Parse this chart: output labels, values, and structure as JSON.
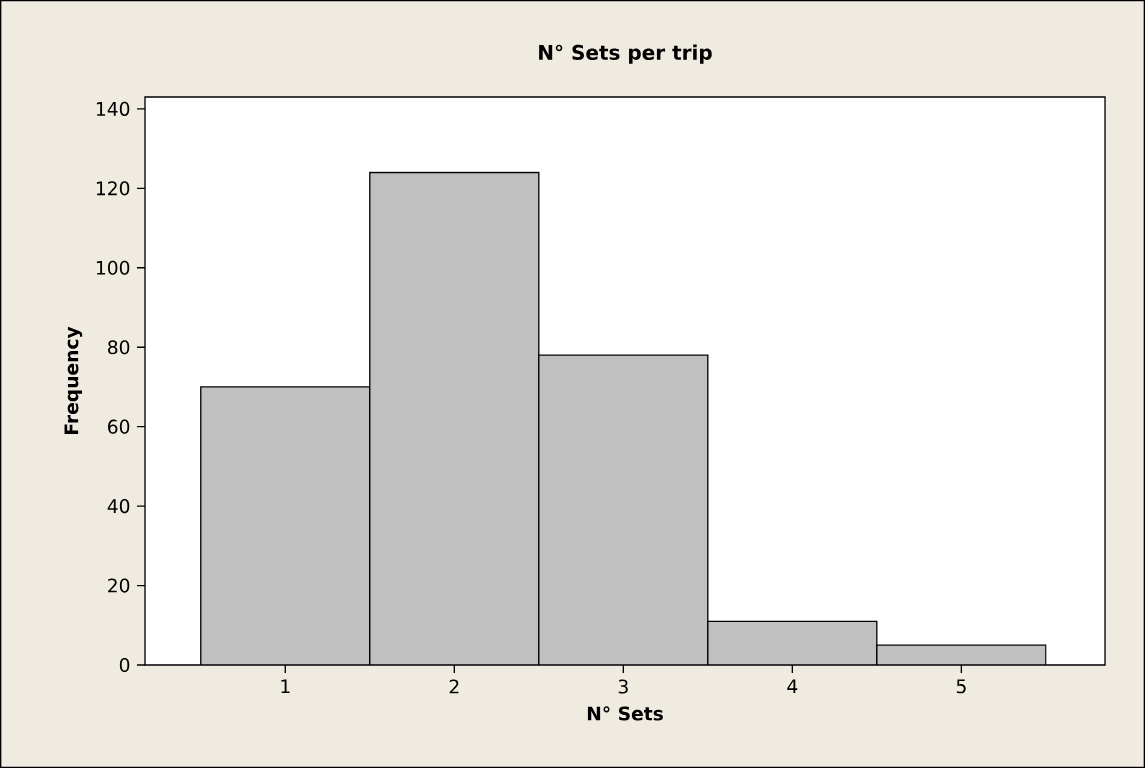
{
  "chart_data": {
    "type": "histogram",
    "title": "N° Sets per trip",
    "xlabel": "N° Sets",
    "ylabel": "Frequency",
    "bins": [
      0.5,
      1.5,
      2.5,
      3.5,
      4.5,
      5.5
    ],
    "values": [
      70,
      124,
      78,
      11,
      5
    ],
    "color": "#c0c0c0",
    "xlim": [
      0.17,
      5.85
    ],
    "ylim": [
      0,
      143
    ],
    "xticks": [
      1,
      2,
      3,
      4,
      5
    ],
    "yticks": [
      0,
      20,
      40,
      60,
      80,
      100,
      120,
      140
    ],
    "grid": false
  }
}
